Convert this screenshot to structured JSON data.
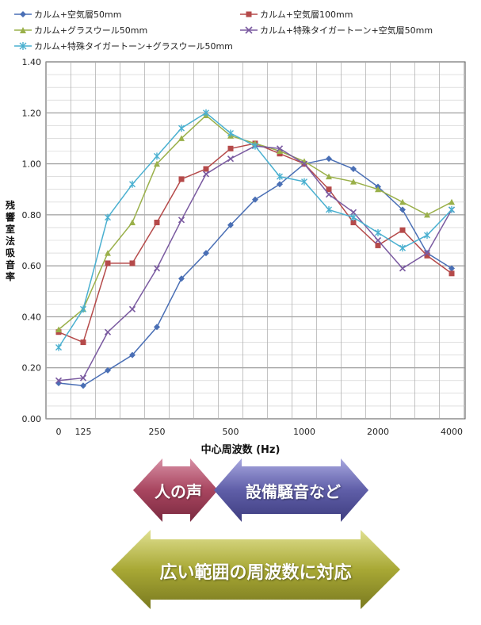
{
  "chart_data": {
    "type": "line",
    "xlabel": "中心周波数 (Hz)",
    "ylabel": "残響室法吸音率",
    "ylim": [
      0,
      1.4
    ],
    "yticks": [
      "0.00",
      "0.20",
      "0.40",
      "0.60",
      "0.80",
      "1.00",
      "1.20",
      "1.40"
    ],
    "xtick_labels": [
      {
        "label": "0",
        "index": 0
      },
      {
        "label": "125",
        "index": 1
      },
      {
        "label": "250",
        "index": 4
      },
      {
        "label": "500",
        "index": 7
      },
      {
        "label": "1000",
        "index": 10
      },
      {
        "label": "2000",
        "index": 13
      },
      {
        "label": "4000",
        "index": 16
      }
    ],
    "grid": true,
    "legend_position": "top",
    "series": [
      {
        "name": "カルム+空気層50mm",
        "color": "#4a6fb5",
        "marker": "diamond",
        "values": [
          0.14,
          0.13,
          0.19,
          0.25,
          0.36,
          0.55,
          0.65,
          0.76,
          0.86,
          0.92,
          1.0,
          1.02,
          0.98,
          0.91,
          0.82,
          0.65,
          0.59
        ]
      },
      {
        "name": "カルム+空気層100mm",
        "color": "#b54a4a",
        "marker": "square",
        "values": [
          0.34,
          0.3,
          0.61,
          0.61,
          0.77,
          0.94,
          0.98,
          1.06,
          1.08,
          1.04,
          1.0,
          0.9,
          0.77,
          0.68,
          0.74,
          0.64,
          0.57
        ]
      },
      {
        "name": "カルム+グラスウール50mm",
        "color": "#9ab04a",
        "marker": "triangle",
        "values": [
          0.35,
          0.43,
          0.65,
          0.77,
          1.0,
          1.1,
          1.19,
          1.11,
          1.08,
          1.05,
          1.01,
          0.95,
          0.93,
          0.9,
          0.85,
          0.8,
          0.85
        ]
      },
      {
        "name": "カルム+特殊タイガートーン+空気層50mm",
        "color": "#7a5aa0",
        "marker": "x",
        "values": [
          0.15,
          0.16,
          0.34,
          0.43,
          0.59,
          0.78,
          0.96,
          1.02,
          1.07,
          1.06,
          1.0,
          0.88,
          0.81,
          0.7,
          0.59,
          0.65,
          0.82
        ]
      },
      {
        "name": "カルム+特殊タイガートーン+グラスウール50mm",
        "color": "#4ab0d0",
        "marker": "star",
        "values": [
          0.28,
          0.43,
          0.79,
          0.92,
          1.03,
          1.14,
          1.2,
          1.12,
          1.07,
          0.95,
          0.93,
          0.82,
          0.79,
          0.73,
          0.67,
          0.72,
          0.82
        ]
      }
    ]
  },
  "arrows": {
    "voice": "人の声",
    "equipment": "設備騒音など",
    "wide": "広い範囲の周波数に対応"
  },
  "colors": {
    "voice_arrow": "#a8455f",
    "equipment_arrow": "#5f5ea8",
    "wide_arrow": "#a8a835"
  }
}
